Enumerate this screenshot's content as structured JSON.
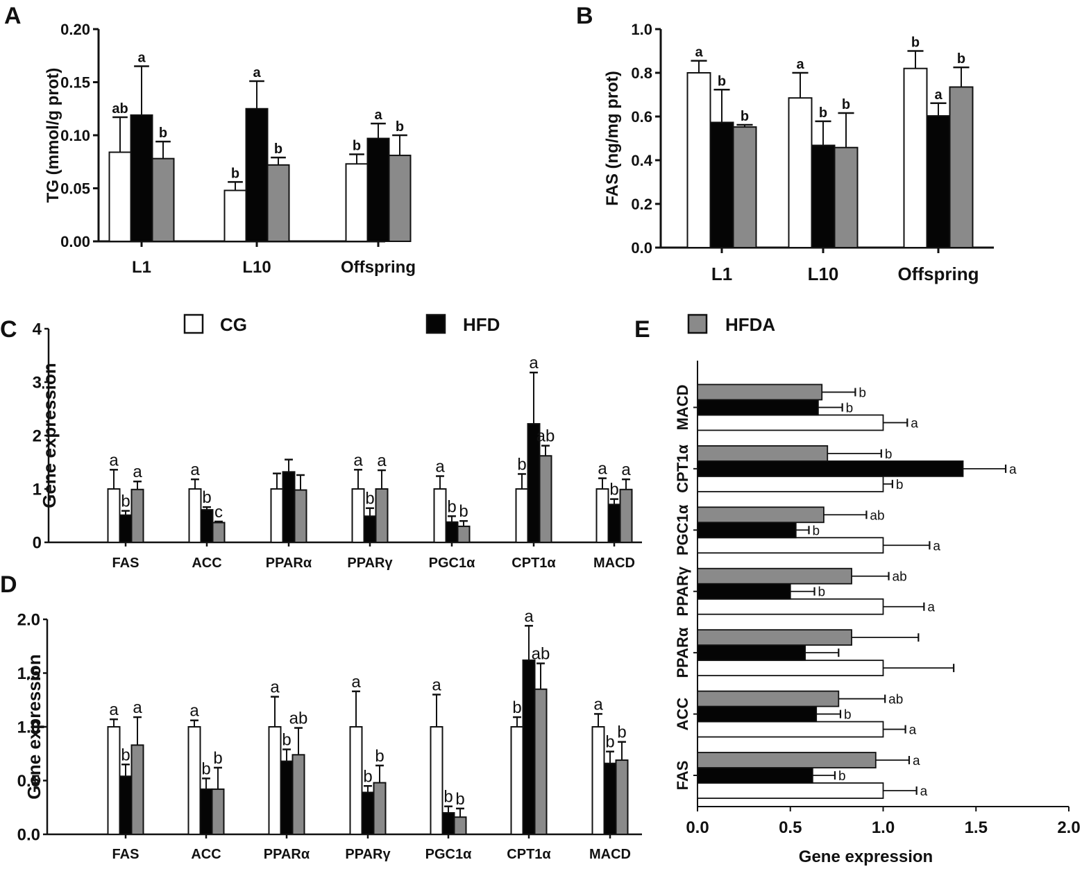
{
  "legend": {
    "items": [
      {
        "label": "CG",
        "color": "#ffffff"
      },
      {
        "label": "HFD",
        "color": "#050505"
      },
      {
        "label": "HFDA",
        "color": "#8a8a8a"
      }
    ]
  },
  "chart_data": [
    {
      "panel": "A",
      "type": "bar",
      "orientation": "vertical",
      "title": "",
      "xlabel": "",
      "ylabel": "TG (mmol/g prot)",
      "ylim": [
        0,
        0.2
      ],
      "yticks": [
        "0.00",
        "0.05",
        "0.10",
        "0.15",
        "0.20"
      ],
      "categories": [
        "L1",
        "L10",
        "Offspring"
      ],
      "series": [
        {
          "name": "CG",
          "values": [
            0.084,
            0.048,
            0.073
          ],
          "errors": [
            0.033,
            0.008,
            0.009
          ],
          "labels": [
            "ab",
            "b",
            "b"
          ]
        },
        {
          "name": "HFD",
          "values": [
            0.119,
            0.125,
            0.097
          ],
          "errors": [
            0.046,
            0.026,
            0.014
          ],
          "labels": [
            "a",
            "a",
            "a"
          ]
        },
        {
          "name": "HFDA",
          "values": [
            0.078,
            0.072,
            0.081
          ],
          "errors": [
            0.016,
            0.007,
            0.019
          ],
          "labels": [
            "b",
            "b",
            "b"
          ]
        }
      ]
    },
    {
      "panel": "B",
      "type": "bar",
      "orientation": "vertical",
      "title": "",
      "xlabel": "",
      "ylabel": "FAS (ng/mg prot)",
      "ylim": [
        0,
        1.0
      ],
      "yticks": [
        "0.0",
        "0.2",
        "0.4",
        "0.6",
        "0.8",
        "1.0"
      ],
      "categories": [
        "L1",
        "L10",
        "Offspring"
      ],
      "series": [
        {
          "name": "CG",
          "values": [
            0.8,
            0.685,
            0.82
          ],
          "errors": [
            0.055,
            0.115,
            0.08
          ],
          "labels": [
            "a",
            "a",
            "b"
          ]
        },
        {
          "name": "HFD",
          "values": [
            0.573,
            0.468,
            0.603
          ],
          "errors": [
            0.15,
            0.11,
            0.058
          ],
          "labels": [
            "b",
            "b",
            "a"
          ]
        },
        {
          "name": "HFDA",
          "values": [
            0.552,
            0.458,
            0.735
          ],
          "errors": [
            0.01,
            0.158,
            0.09
          ],
          "labels": [
            "b",
            "b",
            "b"
          ]
        }
      ]
    },
    {
      "panel": "C",
      "type": "bar",
      "orientation": "vertical",
      "title": "",
      "xlabel": "",
      "ylabel": "Gene expression",
      "ylim": [
        0,
        4
      ],
      "yticks": [
        "0",
        "1",
        "2",
        "3",
        "4"
      ],
      "categories": [
        "FAS",
        "ACC",
        "PPARα",
        "PPARγ",
        "PGC1α",
        "CPT1α",
        "MACD"
      ],
      "series": [
        {
          "name": "CG",
          "values": [
            1.0,
            1.0,
            1.0,
            1.0,
            1.0,
            1.0,
            1.0
          ],
          "errors": [
            0.36,
            0.18,
            0.29,
            0.36,
            0.24,
            0.28,
            0.2
          ],
          "labels": [
            "a",
            "a",
            "",
            "a",
            "a",
            "b",
            "a"
          ]
        },
        {
          "name": "HFD",
          "values": [
            0.51,
            0.61,
            1.32,
            0.49,
            0.38,
            2.22,
            0.71
          ],
          "errors": [
            0.08,
            0.05,
            0.23,
            0.15,
            0.11,
            0.96,
            0.1
          ],
          "labels": [
            "b",
            "b",
            "",
            "b",
            "b",
            "a",
            "b"
          ]
        },
        {
          "name": "HFDA",
          "values": [
            0.99,
            0.37,
            0.98,
            1.0,
            0.3,
            1.62,
            0.99
          ],
          "errors": [
            0.15,
            0.02,
            0.28,
            0.35,
            0.1,
            0.19,
            0.19
          ],
          "labels": [
            "a",
            "c",
            "",
            "a",
            "b",
            "ab",
            "a"
          ]
        }
      ]
    },
    {
      "panel": "D",
      "type": "bar",
      "orientation": "vertical",
      "title": "",
      "xlabel": "",
      "ylabel": "Gene expression",
      "ylim": [
        0,
        2.0
      ],
      "yticks": [
        "0.0",
        "0.5",
        "1.0",
        "1.5",
        "2.0"
      ],
      "categories": [
        "FAS",
        "ACC",
        "PPARα",
        "PPARγ",
        "PGC1α",
        "CPT1α",
        "MACD"
      ],
      "series": [
        {
          "name": "CG",
          "values": [
            1.0,
            1.0,
            1.0,
            1.0,
            1.0,
            1.0,
            1.0
          ],
          "errors": [
            0.07,
            0.06,
            0.28,
            0.33,
            0.3,
            0.09,
            0.12
          ],
          "labels": [
            "a",
            "a",
            "a",
            "a",
            "a",
            "b",
            "a"
          ]
        },
        {
          "name": "HFD",
          "values": [
            0.54,
            0.42,
            0.68,
            0.39,
            0.2,
            1.62,
            0.66
          ],
          "errors": [
            0.11,
            0.1,
            0.11,
            0.06,
            0.06,
            0.32,
            0.11
          ],
          "labels": [
            "b",
            "b",
            "b",
            "b",
            "b",
            "a",
            "b"
          ]
        },
        {
          "name": "HFDA",
          "values": [
            0.83,
            0.42,
            0.74,
            0.48,
            0.16,
            1.35,
            0.69
          ],
          "errors": [
            0.26,
            0.2,
            0.25,
            0.16,
            0.08,
            0.24,
            0.17
          ],
          "labels": [
            "a",
            "b",
            "ab",
            "b",
            "b",
            "ab",
            "b"
          ]
        }
      ]
    },
    {
      "panel": "E",
      "type": "bar",
      "orientation": "horizontal",
      "title": "",
      "xlabel": "Gene expression",
      "ylabel": "",
      "xlim": [
        0,
        2.0
      ],
      "xticks": [
        "0.0",
        "0.5",
        "1.0",
        "1.5",
        "2.0"
      ],
      "categories": [
        "FAS",
        "ACC",
        "PPARα",
        "PPARγ",
        "PGC1α",
        "CPT1α",
        "MACD"
      ],
      "series": [
        {
          "name": "CG",
          "values": [
            1.0,
            1.0,
            1.0,
            1.0,
            1.0,
            1.0,
            1.0
          ],
          "errors": [
            0.18,
            0.12,
            0.38,
            0.22,
            0.25,
            0.05,
            0.13
          ],
          "labels": [
            "a",
            "a",
            "",
            "a",
            "a",
            "b",
            "a"
          ]
        },
        {
          "name": "HFD",
          "values": [
            0.62,
            0.64,
            0.58,
            0.5,
            0.53,
            1.43,
            0.65
          ],
          "errors": [
            0.12,
            0.13,
            0.18,
            0.13,
            0.07,
            0.23,
            0.13
          ],
          "labels": [
            "b",
            "b",
            "",
            "b",
            "b",
            "a",
            "b"
          ]
        },
        {
          "name": "HFDA",
          "values": [
            0.96,
            0.76,
            0.83,
            0.83,
            0.68,
            0.7,
            0.67
          ],
          "errors": [
            0.18,
            0.25,
            0.36,
            0.2,
            0.23,
            0.29,
            0.18
          ],
          "labels": [
            "a",
            "ab",
            "",
            "ab",
            "ab",
            "b",
            "b"
          ]
        }
      ]
    }
  ]
}
